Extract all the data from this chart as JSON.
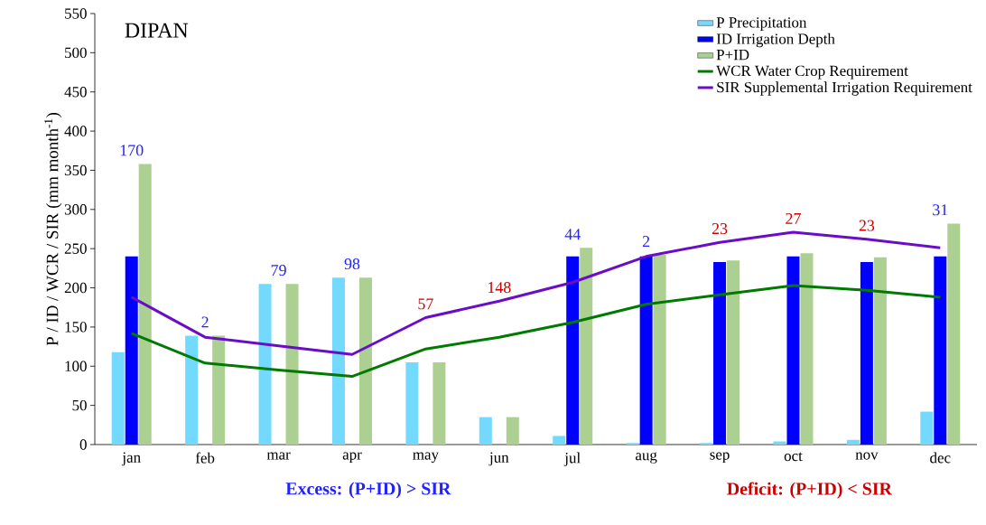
{
  "chart_data": {
    "type": "bar",
    "title": "DIPAN",
    "ylabel": "P / ID / WCR / SIR  (mm month$^{-1}$)",
    "categories": [
      "jan",
      "feb",
      "mar",
      "apr",
      "may",
      "jun",
      "jul",
      "aug",
      "sep",
      "oct",
      "nov",
      "dec"
    ],
    "series": [
      {
        "name": "P Precipitation",
        "color": "#73d9ff",
        "values": [
          118,
          139,
          205,
          213,
          105,
          35,
          11,
          2,
          2,
          4,
          6,
          42
        ]
      },
      {
        "name": "ID Irrigation Depth",
        "color": "#0000ff",
        "values": [
          240,
          0,
          0,
          0,
          0,
          0,
          240,
          240,
          233,
          240,
          233,
          240
        ]
      },
      {
        "name": "P+ID",
        "color": "#acd091",
        "values": [
          358,
          139,
          205,
          213,
          105,
          35,
          251,
          242,
          235,
          244,
          239,
          282
        ]
      },
      {
        "name": "WCR Water Crop Requirement",
        "type": "line",
        "color": "#007a00",
        "values": [
          142,
          104,
          95,
          87,
          122,
          137,
          156,
          179,
          191,
          203,
          197,
          188
        ]
      },
      {
        "name": "SIR Supplemental Irrigation Requirement",
        "type": "line",
        "color": "#6a0dc8",
        "values": [
          188,
          137,
          126,
          115,
          162,
          183,
          207,
          240,
          258,
          271,
          262,
          251
        ]
      }
    ],
    "ylim": [
      0,
      550
    ],
    "yticks": [
      0,
      50,
      100,
      150,
      200,
      250,
      300,
      350,
      400,
      450,
      500,
      550
    ],
    "legend": "top right",
    "grid": false,
    "annotations": [
      "170",
      "2",
      "79",
      "98",
      "57",
      "148",
      "44",
      "2",
      "23",
      "27",
      "23",
      "31",
      "Excess: (P+ID) > SIR",
      "Deficit: (P+ID) < SIR"
    ]
  }
}
